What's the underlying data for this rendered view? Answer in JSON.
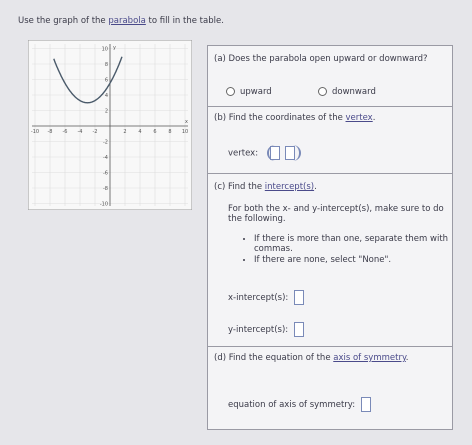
{
  "instruction": [
    "Use the graph of the ",
    "parabola",
    " to fill in the table."
  ],
  "graph": {
    "x_label": "x",
    "y_label": "y",
    "xticks": [
      -10,
      -8,
      -6,
      -4,
      -2,
      2,
      4,
      6,
      8,
      10
    ],
    "yticks": [
      10,
      8,
      6,
      4,
      2,
      -2,
      -4,
      -6,
      -8,
      -10
    ]
  },
  "part_a": {
    "question": "(a) Does the parabola open upward or downward?",
    "options": [
      "upward",
      "downward"
    ]
  },
  "part_b": {
    "question": [
      "(b) Find the coordinates of the ",
      "vertex",
      "."
    ],
    "label": "vertex:"
  },
  "part_c": {
    "question": [
      "(c) Find the ",
      "intercept(s)",
      "."
    ],
    "instructions": "For both the x- and y-intercept(s), make sure to do the following.",
    "bullets": [
      "If there is more than one, separate them with commas.",
      "If there are none, select \"None\"."
    ],
    "x_label": "x-intercept(s):",
    "y_label": "y-intercept(s):"
  },
  "part_d": {
    "question": [
      "(d) Find the equation of the ",
      "axis of symmetry",
      "."
    ],
    "label": "equation of axis of symmetry:"
  }
}
